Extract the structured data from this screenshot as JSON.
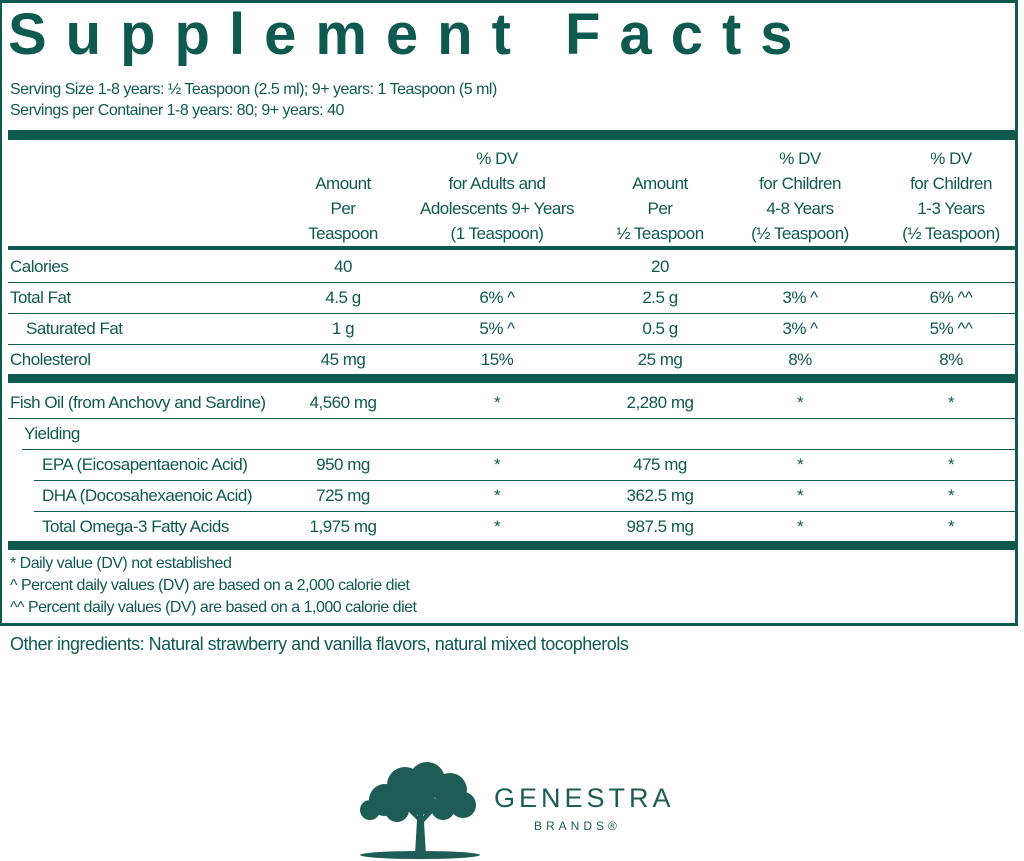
{
  "title": "Supplement Facts",
  "serving_size": "Serving Size 1-8 years: ½ Teaspoon (2.5 ml); 9+ years: 1 Teaspoon (5 ml)",
  "servings_per_container": "Servings per Container 1-8 years: 80; 9+ years: 40",
  "headers": [
    [
      "Amount",
      "Per",
      "Teaspoon"
    ],
    [
      "% DV",
      "for Adults and",
      "Adolescents 9+ Years",
      "(1 Teaspoon)"
    ],
    [
      "Amount",
      "Per",
      "½ Teaspoon"
    ],
    [
      "% DV",
      "for Children",
      "4-8 Years",
      "(½ Teaspoon)"
    ],
    [
      "% DV",
      "for Children",
      "1-3 Years",
      "(½ Teaspoon)"
    ]
  ],
  "section1": [
    {
      "label": "Calories",
      "values": [
        "40",
        "",
        "20",
        "",
        ""
      ]
    },
    {
      "label": "Total Fat",
      "values": [
        "4.5 g",
        "6% ^",
        "2.5 g",
        "3% ^",
        "6% ^^"
      ]
    },
    {
      "label": "Saturated Fat",
      "values": [
        "1 g",
        "5% ^",
        "0.5 g",
        "3% ^",
        "5% ^^"
      ]
    },
    {
      "label": "Cholesterol",
      "values": [
        "45 mg",
        "15%",
        "25 mg",
        "8%",
        "8%"
      ]
    }
  ],
  "section2": [
    {
      "label": "Fish Oil (from Anchovy and Sardine)",
      "values": [
        "4,560 mg",
        "*",
        "2,280 mg",
        "*",
        "*"
      ]
    },
    {
      "label": "Yielding",
      "values": [
        "",
        "",
        "",
        "",
        ""
      ]
    },
    {
      "label": "EPA (Eicosapentaenoic Acid)",
      "values": [
        "950 mg",
        "*",
        "475 mg",
        "*",
        "*"
      ]
    },
    {
      "label": "DHA (Docosahexaenoic Acid)",
      "values": [
        "725 mg",
        "*",
        "362.5 mg",
        "*",
        "*"
      ]
    },
    {
      "label": "Total Omega-3 Fatty Acids",
      "values": [
        "1,975 mg",
        "*",
        "987.5 mg",
        "*",
        "*"
      ]
    }
  ],
  "footnotes": [
    "* Daily value (DV) not established",
    "^  Percent daily values (DV) are based on a 2,000 calorie diet",
    "^^ Percent daily values (DV) are based on a 1,000 calorie diet"
  ],
  "other_ingredients": "Other ingredients: Natural strawberry and vanilla flavors, natural mixed tocopherols",
  "logo": {
    "name": "GENESTRA",
    "sub": "BRANDS®",
    "icon": "tree-icon"
  },
  "colors": {
    "primary": "#0f5a50"
  }
}
